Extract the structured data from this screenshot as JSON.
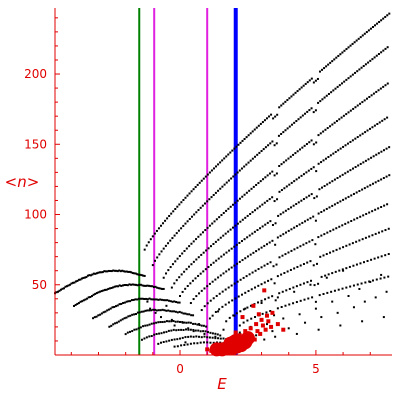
{
  "chart_data": {
    "type": "scatter",
    "title": "",
    "xlabel": "E",
    "ylabel": "<n>",
    "xlim": [
      -4.6,
      7.8
    ],
    "ylim": [
      0,
      247
    ],
    "x_ticks": [
      0,
      5
    ],
    "x_tick_labels": [
      "0",
      "5"
    ],
    "y_ticks": [
      50,
      100,
      150,
      200
    ],
    "y_tick_labels": [
      "50",
      "100",
      "150",
      "200"
    ],
    "grid": false,
    "legend": "none",
    "colors": {
      "axis": "#e00000",
      "tick_text": "#e00000",
      "points": "#000000",
      "highlight": "#e00000",
      "line_green": "#008000",
      "line_magenta": "#e020e0",
      "line_blue": "#0000ff"
    },
    "vertical_lines": [
      {
        "x": -1.5,
        "color": "#008000"
      },
      {
        "x": -0.95,
        "color": "#e020e0"
      },
      {
        "x": 1.0,
        "color": "#e020e0"
      },
      {
        "x": 2.05,
        "color": "#0000ff"
      }
    ],
    "dotted_curves": [
      {
        "x0": -4.6,
        "y0": 44,
        "xpk": -2.4,
        "ypk": 60,
        "x1": -1.3,
        "y1": 56,
        "step": 0.055
      },
      {
        "x0": -3.9,
        "y0": 35,
        "xpk": -1.8,
        "ypk": 50,
        "x1": -0.6,
        "y1": 47,
        "step": 0.06
      },
      {
        "x0": -3.2,
        "y0": 26,
        "xpk": -1.3,
        "ypk": 40,
        "x1": 0.0,
        "y1": 37,
        "step": 0.065
      },
      {
        "x0": -2.6,
        "y0": 20,
        "xpk": -0.9,
        "ypk": 32,
        "x1": 0.5,
        "y1": 28,
        "step": 0.07
      },
      {
        "x0": -2.0,
        "y0": 15,
        "xpk": -0.4,
        "ypk": 24,
        "x1": 1.0,
        "y1": 20,
        "step": 0.08
      },
      {
        "x0": -1.4,
        "y0": 11,
        "xpk": 0.1,
        "ypk": 18,
        "x1": 1.5,
        "y1": 14,
        "step": 0.09
      },
      {
        "x0": -0.8,
        "y0": 8,
        "xpk": 0.6,
        "ypk": 13,
        "x1": 2.0,
        "y1": 10,
        "step": 0.1
      },
      {
        "x0": -0.2,
        "y0": 6,
        "xpk": 1.1,
        "ypk": 9,
        "x1": 2.5,
        "y1": 7,
        "step": 0.12
      }
    ],
    "rising_curves": [
      {
        "x0": -1.3,
        "y0": 75,
        "x1": 7.7,
        "y1": 243,
        "k": 0.42,
        "step": 0.075
      },
      {
        "x0": -1.0,
        "y0": 64,
        "x1": 7.7,
        "y1": 220,
        "k": 0.4,
        "step": 0.08
      },
      {
        "x0": -0.6,
        "y0": 55,
        "x1": 7.7,
        "y1": 194,
        "k": 0.38,
        "step": 0.085
      },
      {
        "x0": -0.3,
        "y0": 48,
        "x1": 7.7,
        "y1": 170,
        "k": 0.36,
        "step": 0.09
      },
      {
        "x0": 0.0,
        "y0": 42,
        "x1": 7.7,
        "y1": 148,
        "k": 0.33,
        "step": 0.095
      },
      {
        "x0": 0.4,
        "y0": 37,
        "x1": 7.7,
        "y1": 128,
        "k": 0.3,
        "step": 0.1
      },
      {
        "x0": 0.8,
        "y0": 32,
        "x1": 7.7,
        "y1": 108,
        "k": 0.27,
        "step": 0.11
      },
      {
        "x0": 1.2,
        "y0": 28,
        "x1": 7.7,
        "y1": 90,
        "k": 0.24,
        "step": 0.12
      },
      {
        "x0": 1.7,
        "y0": 24,
        "x1": 7.7,
        "y1": 72,
        "k": 0.2,
        "step": 0.13
      },
      {
        "x0": 2.2,
        "y0": 21,
        "x1": 7.7,
        "y1": 56,
        "k": 0.16,
        "step": 0.14
      }
    ],
    "scatter_black": [
      [
        -1.2,
        38
      ],
      [
        -1.1,
        33
      ],
      [
        -0.9,
        30
      ],
      [
        -0.7,
        27
      ],
      [
        -0.5,
        35
      ],
      [
        -0.3,
        25
      ],
      [
        -0.2,
        21
      ],
      [
        0.1,
        23
      ],
      [
        0.3,
        19
      ],
      [
        0.5,
        17
      ],
      [
        0.7,
        22
      ],
      [
        0.9,
        15
      ],
      [
        1.1,
        26
      ],
      [
        1.3,
        13
      ],
      [
        1.4,
        31
      ],
      [
        1.6,
        18
      ],
      [
        1.8,
        12
      ],
      [
        2.0,
        28
      ],
      [
        2.2,
        16
      ],
      [
        2.4,
        33
      ],
      [
        2.6,
        20
      ],
      [
        2.8,
        14
      ],
      [
        3.0,
        37
      ],
      [
        3.2,
        22
      ],
      [
        3.4,
        17
      ],
      [
        3.6,
        41
      ],
      [
        3.8,
        26
      ],
      [
        4.0,
        19
      ],
      [
        4.2,
        45
      ],
      [
        4.4,
        29
      ],
      [
        4.6,
        23
      ],
      [
        4.8,
        50
      ],
      [
        5.0,
        33
      ],
      [
        5.2,
        27
      ],
      [
        5.4,
        55
      ],
      [
        5.6,
        38
      ],
      [
        5.8,
        30
      ],
      [
        6.0,
        60
      ],
      [
        6.2,
        42
      ],
      [
        6.4,
        34
      ],
      [
        6.6,
        47
      ],
      [
        6.8,
        38
      ],
      [
        7.0,
        52
      ],
      [
        7.2,
        41
      ],
      [
        7.4,
        57
      ],
      [
        7.6,
        45
      ],
      [
        3.1,
        11
      ],
      [
        3.5,
        13
      ],
      [
        4.3,
        15
      ],
      [
        5.1,
        18
      ],
      [
        5.9,
        21
      ],
      [
        6.7,
        24
      ],
      [
        7.5,
        27
      ],
      [
        2.5,
        9
      ],
      [
        1.9,
        7
      ],
      [
        0.2,
        9
      ]
    ],
    "scatter_red": [
      [
        1.0,
        4
      ],
      [
        1.15,
        3
      ],
      [
        1.3,
        3
      ],
      [
        1.45,
        4
      ],
      [
        1.55,
        3
      ],
      [
        1.65,
        5
      ],
      [
        1.75,
        4
      ],
      [
        1.85,
        6
      ],
      [
        1.95,
        4
      ],
      [
        2.05,
        7
      ],
      [
        2.15,
        5
      ],
      [
        2.25,
        8
      ],
      [
        2.35,
        6
      ],
      [
        2.45,
        10
      ],
      [
        2.55,
        8
      ],
      [
        2.65,
        13
      ],
      [
        2.75,
        11
      ],
      [
        2.85,
        17
      ],
      [
        2.95,
        15
      ],
      [
        3.05,
        21
      ],
      [
        3.15,
        18
      ],
      [
        3.25,
        24
      ],
      [
        3.35,
        20
      ],
      [
        2.2,
        14
      ],
      [
        2.4,
        17
      ],
      [
        2.6,
        19
      ],
      [
        2.8,
        22
      ],
      [
        3.0,
        25
      ],
      [
        3.2,
        28
      ],
      [
        3.4,
        30
      ],
      [
        3.1,
        46
      ],
      [
        2.7,
        35
      ],
      [
        2.3,
        27
      ],
      [
        3.6,
        22
      ],
      [
        3.8,
        18
      ],
      [
        1.9,
        12
      ],
      [
        2.05,
        16
      ],
      [
        2.9,
        29
      ]
    ],
    "scatter_red_large": [
      [
        1.35,
        4
      ],
      [
        1.55,
        4
      ],
      [
        1.75,
        5
      ],
      [
        1.95,
        5
      ],
      [
        2.1,
        6
      ],
      [
        2.25,
        7
      ],
      [
        2.4,
        9
      ],
      [
        2.5,
        12
      ],
      [
        2.05,
        10
      ],
      [
        1.85,
        8
      ]
    ]
  }
}
